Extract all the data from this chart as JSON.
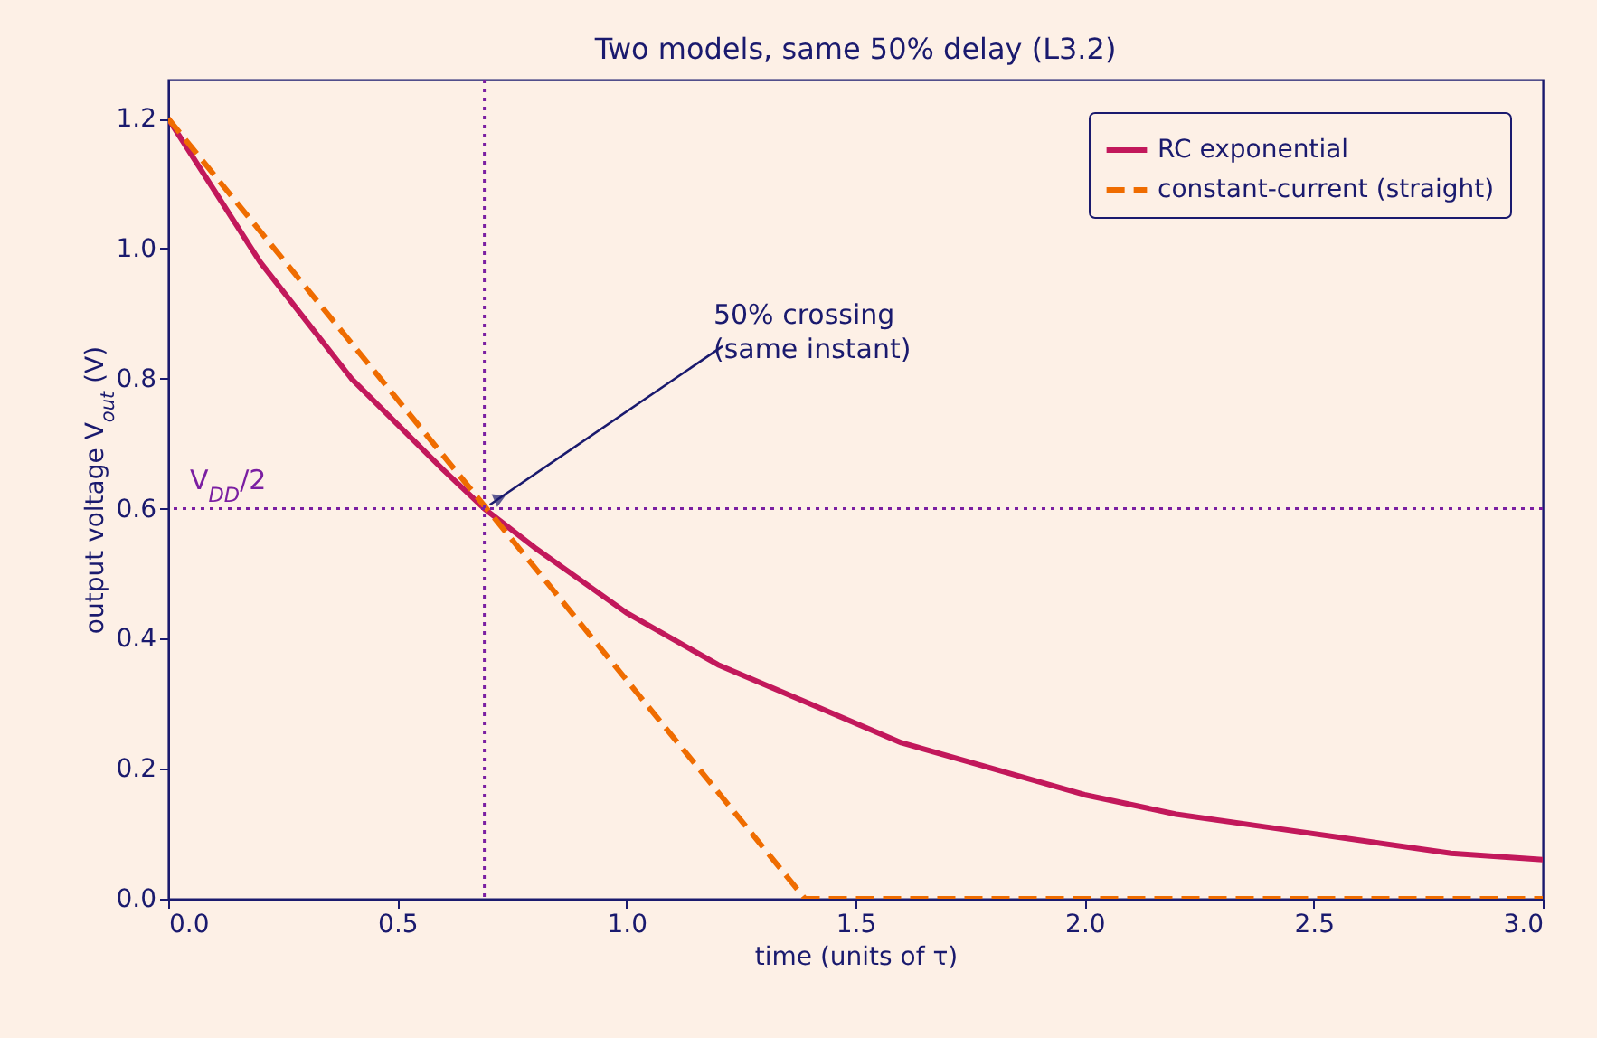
{
  "chart_data": {
    "type": "line",
    "title": "Two models, same 50% delay (L3.2)",
    "xlabel": "time  (units of τ)",
    "ylabel": "output voltage V$_{out}$ (V)",
    "series": [
      {
        "name": "RC exponential",
        "color": "#c2185b",
        "line_style": "solid",
        "x": [
          0,
          0.1,
          0.2,
          0.3,
          0.4,
          0.5,
          0.6,
          0.69,
          0.8,
          0.9,
          1.0,
          1.2,
          1.4,
          1.6,
          1.8,
          2.0,
          2.2,
          2.4,
          2.6,
          2.8,
          3.0
        ],
        "values": [
          1.2,
          1.09,
          0.98,
          0.89,
          0.8,
          0.73,
          0.66,
          0.6,
          0.54,
          0.49,
          0.44,
          0.36,
          0.3,
          0.24,
          0.2,
          0.16,
          0.13,
          0.11,
          0.09,
          0.07,
          0.06
        ]
      },
      {
        "name": "constant-current (straight)",
        "color": "#ef6c00",
        "line_style": "dashed",
        "x": [
          0,
          1.39,
          3.0
        ],
        "values": [
          1.2,
          0,
          0
        ]
      }
    ],
    "xlim": [
      0,
      3.0
    ],
    "ylim": [
      0,
      1.26
    ],
    "xticks": [
      {
        "value": 0,
        "label": "0.0"
      },
      0.5,
      {
        "value": 1,
        "label": "1.0"
      },
      1.5,
      {
        "value": 2,
        "label": "2.0"
      },
      2.5,
      {
        "value": 3,
        "label": "3.0"
      }
    ],
    "yticks": [
      {
        "value": 0,
        "label": "0.0"
      },
      0.2,
      0.4,
      0.6,
      0.8,
      {
        "value": 1,
        "label": "1.0"
      },
      1.2
    ],
    "ref_lines": [
      {
        "axis": "x",
        "value": 0.69,
        "color": "#7b1fa2",
        "line_style": "dotted"
      },
      {
        "axis": "y",
        "value": 0.6,
        "label": "V$_{DD}$/2",
        "color": "#7b1fa2",
        "line_style": "dotted"
      }
    ],
    "annotations": [
      {
        "text": "50% crossing\n(same instant)",
        "x": 0.69,
        "y": 0.6
      }
    ],
    "legend": "top right",
    "grid": false
  }
}
